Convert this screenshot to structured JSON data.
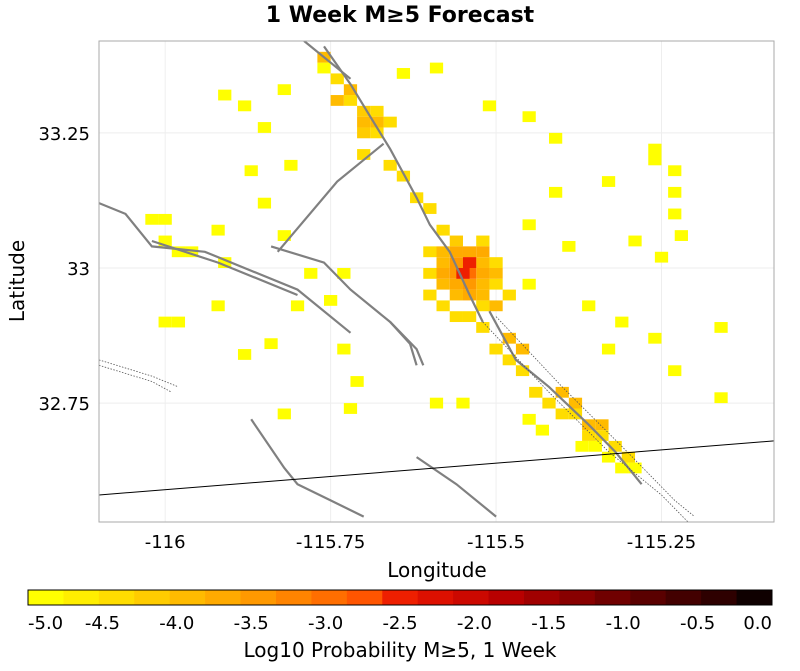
{
  "chart_data": {
    "type": "heatmap",
    "title": "1 Week M≥5 Forecast",
    "xlabel": "Longitude",
    "ylabel": "Latitude",
    "xlim": [
      -116.1,
      -115.08
    ],
    "ylim": [
      32.53,
      33.42
    ],
    "x_ticks": [
      {
        "value": -116,
        "label": "-116"
      },
      {
        "value": -115.75,
        "label": "-115.75"
      },
      {
        "value": -115.5,
        "label": "-115.5"
      },
      {
        "value": -115.25,
        "label": "-115.25"
      }
    ],
    "y_ticks": [
      {
        "value": 33.25,
        "label": "33.25"
      },
      {
        "value": 33,
        "label": "33"
      },
      {
        "value": 32.75,
        "label": "32.75"
      }
    ],
    "grid": true,
    "cell_size_deg": 0.02,
    "colorbar": {
      "label": "Log10 Probability M≥5, 1 Week",
      "range": [
        -5.0,
        0.0
      ],
      "ticks": [
        "-5.0",
        "-4.5",
        "-4.0",
        "-3.5",
        "-3.0",
        "-2.5",
        "-2.0",
        "-1.5",
        "-1.0",
        "-0.5",
        "0.0"
      ],
      "colors": [
        "#ffff00",
        "#ffee00",
        "#ffdd00",
        "#ffcc00",
        "#ffbb00",
        "#ffaa00",
        "#ff9900",
        "#ff8400",
        "#ff6e00",
        "#ff5500",
        "#ee1f00",
        "#dd1000",
        "#cc0800",
        "#b80000",
        "#a00000",
        "#880000",
        "#700000",
        "#5a0000",
        "#430000",
        "#2e0000",
        "#0f0000"
      ]
    },
    "cells": [
      {
        "lon": -115.76,
        "lat": 33.37,
        "v": -4.9
      },
      {
        "lon": -115.82,
        "lat": 33.33,
        "v": -4.9
      },
      {
        "lon": -115.64,
        "lat": 33.36,
        "v": -4.9
      },
      {
        "lon": -115.59,
        "lat": 33.37,
        "v": -4.9
      },
      {
        "lon": -115.51,
        "lat": 33.3,
        "v": -4.9
      },
      {
        "lon": -115.45,
        "lat": 33.28,
        "v": -4.9
      },
      {
        "lon": -115.41,
        "lat": 33.24,
        "v": -4.9
      },
      {
        "lon": -115.26,
        "lat": 33.22,
        "v": -4.9
      },
      {
        "lon": -115.26,
        "lat": 33.2,
        "v": -4.9
      },
      {
        "lon": -115.23,
        "lat": 33.18,
        "v": -4.9
      },
      {
        "lon": -115.23,
        "lat": 33.14,
        "v": -4.9
      },
      {
        "lon": -115.23,
        "lat": 33.1,
        "v": -4.9
      },
      {
        "lon": -115.22,
        "lat": 33.06,
        "v": -4.9
      },
      {
        "lon": -115.16,
        "lat": 32.89,
        "v": -4.9
      },
      {
        "lon": -115.23,
        "lat": 32.81,
        "v": -4.9
      },
      {
        "lon": -115.16,
        "lat": 32.76,
        "v": -4.9
      },
      {
        "lon": -115.33,
        "lat": 33.16,
        "v": -4.9
      },
      {
        "lon": -115.41,
        "lat": 33.14,
        "v": -4.9
      },
      {
        "lon": -115.45,
        "lat": 33.08,
        "v": -4.9
      },
      {
        "lon": -115.39,
        "lat": 33.04,
        "v": -4.9
      },
      {
        "lon": -115.29,
        "lat": 33.05,
        "v": -4.9
      },
      {
        "lon": -115.25,
        "lat": 33.02,
        "v": -4.9
      },
      {
        "lon": -115.26,
        "lat": 32.87,
        "v": -4.9
      },
      {
        "lon": -115.33,
        "lat": 32.85,
        "v": -4.9
      },
      {
        "lon": -115.36,
        "lat": 32.93,
        "v": -4.9
      },
      {
        "lon": -115.31,
        "lat": 32.9,
        "v": -4.9
      },
      {
        "lon": -115.45,
        "lat": 32.97,
        "v": -4.9
      },
      {
        "lon": -116.02,
        "lat": 33.09,
        "v": -4.9
      },
      {
        "lon": -116.0,
        "lat": 33.09,
        "v": -4.9
      },
      {
        "lon": -116.0,
        "lat": 33.05,
        "v": -4.9
      },
      {
        "lon": -115.98,
        "lat": 33.03,
        "v": -4.9
      },
      {
        "lon": -115.96,
        "lat": 33.03,
        "v": -4.9
      },
      {
        "lon": -115.92,
        "lat": 33.07,
        "v": -4.9
      },
      {
        "lon": -115.91,
        "lat": 33.01,
        "v": -4.9
      },
      {
        "lon": -115.92,
        "lat": 32.93,
        "v": -4.9
      },
      {
        "lon": -115.98,
        "lat": 32.9,
        "v": -4.9
      },
      {
        "lon": -116.0,
        "lat": 32.9,
        "v": -4.9
      },
      {
        "lon": -115.88,
        "lat": 32.84,
        "v": -4.9
      },
      {
        "lon": -115.84,
        "lat": 32.86,
        "v": -4.9
      },
      {
        "lon": -115.8,
        "lat": 32.93,
        "v": -4.9
      },
      {
        "lon": -115.78,
        "lat": 32.99,
        "v": -4.9
      },
      {
        "lon": -115.73,
        "lat": 32.99,
        "v": -4.9
      },
      {
        "lon": -115.75,
        "lat": 32.94,
        "v": -4.9
      },
      {
        "lon": -115.73,
        "lat": 32.85,
        "v": -4.9
      },
      {
        "lon": -115.71,
        "lat": 32.79,
        "v": -4.9
      },
      {
        "lon": -115.82,
        "lat": 32.73,
        "v": -4.9
      },
      {
        "lon": -115.72,
        "lat": 32.74,
        "v": -4.9
      },
      {
        "lon": -115.85,
        "lat": 33.12,
        "v": -4.9
      },
      {
        "lon": -115.87,
        "lat": 33.18,
        "v": -4.9
      },
      {
        "lon": -115.81,
        "lat": 33.19,
        "v": -4.9
      },
      {
        "lon": -115.85,
        "lat": 33.26,
        "v": -4.9
      },
      {
        "lon": -115.88,
        "lat": 33.3,
        "v": -4.9
      },
      {
        "lon": -115.91,
        "lat": 33.32,
        "v": -4.9
      },
      {
        "lon": -115.82,
        "lat": 33.06,
        "v": -4.9
      },
      {
        "lon": -115.55,
        "lat": 32.75,
        "v": -4.9
      },
      {
        "lon": -115.59,
        "lat": 32.75,
        "v": -4.9
      },
      {
        "lon": -115.45,
        "lat": 32.72,
        "v": -4.9
      },
      {
        "lon": -115.43,
        "lat": 32.7,
        "v": -4.9
      },
      {
        "lon": -115.37,
        "lat": 32.67,
        "v": -4.9
      },
      {
        "lon": -115.35,
        "lat": 32.67,
        "v": -4.9
      },
      {
        "lon": -115.33,
        "lat": 32.65,
        "v": -4.9
      },
      {
        "lon": -115.31,
        "lat": 32.63,
        "v": -4.9
      },
      {
        "lon": -115.29,
        "lat": 32.63,
        "v": -4.9
      },
      {
        "lon": -115.74,
        "lat": 33.35,
        "v": -4.3
      },
      {
        "lon": -115.72,
        "lat": 33.31,
        "v": -4.4
      },
      {
        "lon": -115.7,
        "lat": 33.29,
        "v": -4.2
      },
      {
        "lon": -115.68,
        "lat": 33.29,
        "v": -4.4
      },
      {
        "lon": -115.7,
        "lat": 33.25,
        "v": -4.1
      },
      {
        "lon": -115.68,
        "lat": 33.25,
        "v": -4.4
      },
      {
        "lon": -115.66,
        "lat": 33.27,
        "v": -4.4
      },
      {
        "lon": -115.7,
        "lat": 33.21,
        "v": -4.4
      },
      {
        "lon": -115.66,
        "lat": 33.19,
        "v": -4.4
      },
      {
        "lon": -115.64,
        "lat": 33.17,
        "v": -4.4
      },
      {
        "lon": -115.62,
        "lat": 33.13,
        "v": -4.4
      },
      {
        "lon": -115.6,
        "lat": 33.11,
        "v": -4.4
      },
      {
        "lon": -115.58,
        "lat": 33.07,
        "v": -4.3
      },
      {
        "lon": -115.56,
        "lat": 33.05,
        "v": -4.1
      },
      {
        "lon": -115.52,
        "lat": 33.05,
        "v": -4.4
      },
      {
        "lon": -115.5,
        "lat": 33.01,
        "v": -4.4
      },
      {
        "lon": -115.5,
        "lat": 32.97,
        "v": -4.3
      },
      {
        "lon": -115.48,
        "lat": 32.95,
        "v": -4.4
      },
      {
        "lon": -115.52,
        "lat": 32.93,
        "v": -4.3
      },
      {
        "lon": -115.54,
        "lat": 32.91,
        "v": -4.3
      },
      {
        "lon": -115.56,
        "lat": 32.91,
        "v": -4.4
      },
      {
        "lon": -115.58,
        "lat": 32.93,
        "v": -4.3
      },
      {
        "lon": -115.6,
        "lat": 32.95,
        "v": -4.4
      },
      {
        "lon": -115.6,
        "lat": 32.99,
        "v": -4.4
      },
      {
        "lon": -115.6,
        "lat": 33.03,
        "v": -4.4
      },
      {
        "lon": -115.52,
        "lat": 32.89,
        "v": -4.4
      },
      {
        "lon": -115.5,
        "lat": 32.85,
        "v": -4.4
      },
      {
        "lon": -115.48,
        "lat": 32.83,
        "v": -4.4
      },
      {
        "lon": -115.46,
        "lat": 32.81,
        "v": -4.4
      },
      {
        "lon": -115.44,
        "lat": 32.77,
        "v": -4.4
      },
      {
        "lon": -115.42,
        "lat": 32.75,
        "v": -4.4
      },
      {
        "lon": -115.4,
        "lat": 32.73,
        "v": -4.3
      },
      {
        "lon": -115.38,
        "lat": 32.73,
        "v": -4.4
      },
      {
        "lon": -115.36,
        "lat": 32.69,
        "v": -4.3
      },
      {
        "lon": -115.34,
        "lat": 32.69,
        "v": -4.4
      },
      {
        "lon": -115.32,
        "lat": 32.67,
        "v": -4.4
      },
      {
        "lon": -115.3,
        "lat": 32.65,
        "v": -4.4
      },
      {
        "lon": -115.76,
        "lat": 33.39,
        "v": -3.9
      },
      {
        "lon": -115.72,
        "lat": 33.33,
        "v": -4.0
      },
      {
        "lon": -115.74,
        "lat": 33.31,
        "v": -4.0
      },
      {
        "lon": -115.7,
        "lat": 33.27,
        "v": -3.9
      },
      {
        "lon": -115.68,
        "lat": 33.27,
        "v": -4.0
      },
      {
        "lon": -115.58,
        "lat": 33.01,
        "v": -3.9
      },
      {
        "lon": -115.58,
        "lat": 33.03,
        "v": -4.0
      },
      {
        "lon": -115.56,
        "lat": 32.95,
        "v": -4.0
      },
      {
        "lon": -115.58,
        "lat": 32.97,
        "v": -3.9
      },
      {
        "lon": -115.52,
        "lat": 32.97,
        "v": -4.0
      },
      {
        "lon": -115.52,
        "lat": 33.01,
        "v": -4.0
      },
      {
        "lon": -115.5,
        "lat": 32.99,
        "v": -4.0
      },
      {
        "lon": -115.48,
        "lat": 32.87,
        "v": -3.9
      },
      {
        "lon": -115.46,
        "lat": 32.85,
        "v": -4.0
      },
      {
        "lon": -115.4,
        "lat": 32.77,
        "v": -4.0
      },
      {
        "lon": -115.38,
        "lat": 32.75,
        "v": -3.9
      },
      {
        "lon": -115.36,
        "lat": 32.71,
        "v": -4.0
      },
      {
        "lon": -115.34,
        "lat": 32.71,
        "v": -4.0
      },
      {
        "lon": -115.56,
        "lat": 33.03,
        "v": -3.6
      },
      {
        "lon": -115.56,
        "lat": 32.97,
        "v": -3.6
      },
      {
        "lon": -115.54,
        "lat": 32.95,
        "v": -3.7
      },
      {
        "lon": -115.52,
        "lat": 32.99,
        "v": -3.6
      },
      {
        "lon": -115.52,
        "lat": 32.95,
        "v": -3.8
      },
      {
        "lon": -115.5,
        "lat": 32.93,
        "v": -3.8
      },
      {
        "lon": -115.58,
        "lat": 32.99,
        "v": -3.6
      },
      {
        "lon": -115.54,
        "lat": 33.03,
        "v": -3.7
      },
      {
        "lon": -115.54,
        "lat": 33.01,
        "v": -3.3
      },
      {
        "lon": -115.52,
        "lat": 33.03,
        "v": -3.6
      },
      {
        "lon": -115.56,
        "lat": 33.01,
        "v": -3.3
      },
      {
        "lon": -115.56,
        "lat": 32.99,
        "v": -3.3
      },
      {
        "lon": -115.54,
        "lat": 32.97,
        "v": -3.3
      },
      {
        "lon": -115.54,
        "lat": 32.99,
        "v": -2.8
      },
      {
        "lon": -115.54,
        "lat": 33.01,
        "v": -2.3
      },
      {
        "lon": -115.55,
        "lat": 32.99,
        "v": -2.4
      }
    ],
    "faults": [
      {
        "style": "solid",
        "points": [
          [
            -115.79,
            33.42
          ],
          [
            -115.72,
            33.35
          ]
        ]
      },
      {
        "style": "solid",
        "points": [
          [
            -115.76,
            33.41
          ],
          [
            -115.72,
            33.34
          ],
          [
            -115.69,
            33.28
          ],
          [
            -115.66,
            33.22
          ],
          [
            -115.62,
            33.13
          ],
          [
            -115.6,
            33.08
          ],
          [
            -115.57,
            33.03
          ],
          [
            -115.54,
            32.95
          ],
          [
            -115.52,
            32.9
          ]
        ]
      },
      {
        "style": "solid",
        "points": [
          [
            -115.67,
            33.23
          ],
          [
            -115.74,
            33.16
          ],
          [
            -115.83,
            33.03
          ]
        ]
      },
      {
        "style": "solid",
        "points": [
          [
            -116.1,
            33.12
          ],
          [
            -116.06,
            33.1
          ],
          [
            -116.02,
            33.04
          ],
          [
            -115.94,
            33.03
          ],
          [
            -115.86,
            32.99
          ],
          [
            -115.8,
            32.96
          ],
          [
            -115.72,
            32.88
          ]
        ]
      },
      {
        "style": "solid",
        "points": [
          [
            -116.02,
            33.05
          ],
          [
            -115.92,
            33.01
          ],
          [
            -115.8,
            32.95
          ]
        ]
      },
      {
        "style": "solid",
        "points": [
          [
            -115.84,
            33.04
          ],
          [
            -115.76,
            33.01
          ],
          [
            -115.72,
            32.96
          ],
          [
            -115.66,
            32.9
          ],
          [
            -115.62,
            32.85
          ],
          [
            -115.61,
            32.82
          ]
        ]
      },
      {
        "style": "solid",
        "points": [
          [
            -115.66,
            32.9
          ],
          [
            -115.63,
            32.86
          ],
          [
            -115.62,
            32.82
          ]
        ]
      },
      {
        "style": "solid",
        "points": [
          [
            -115.51,
            32.92
          ],
          [
            -115.47,
            32.83
          ],
          [
            -115.42,
            32.78
          ],
          [
            -115.36,
            32.71
          ],
          [
            -115.32,
            32.66
          ],
          [
            -115.28,
            32.6
          ]
        ]
      },
      {
        "style": "solid",
        "points": [
          [
            -115.87,
            32.72
          ],
          [
            -115.82,
            32.63
          ],
          [
            -115.8,
            32.6
          ],
          [
            -115.75,
            32.57
          ],
          [
            -115.7,
            32.54
          ]
        ]
      },
      {
        "style": "solid",
        "points": [
          [
            -115.62,
            32.65
          ],
          [
            -115.56,
            32.6
          ],
          [
            -115.5,
            32.54
          ]
        ]
      },
      {
        "style": "dotted",
        "points": [
          [
            -115.52,
            32.9
          ],
          [
            -115.42,
            32.77
          ],
          [
            -115.33,
            32.66
          ],
          [
            -115.25,
            32.58
          ],
          [
            -115.21,
            32.53
          ]
        ]
      },
      {
        "style": "dotted",
        "points": [
          [
            -115.5,
            32.91
          ],
          [
            -115.4,
            32.78
          ],
          [
            -115.31,
            32.67
          ],
          [
            -115.23,
            32.57
          ],
          [
            -115.2,
            32.54
          ]
        ]
      },
      {
        "style": "dotted",
        "points": [
          [
            -116.1,
            32.83
          ],
          [
            -116.02,
            32.8
          ],
          [
            -115.98,
            32.78
          ]
        ]
      },
      {
        "style": "dotted",
        "points": [
          [
            -116.1,
            32.82
          ],
          [
            -116.02,
            32.79
          ],
          [
            -115.99,
            32.77
          ]
        ]
      },
      {
        "style": "solid",
        "points": [
          [
            -116.1,
            32.58
          ],
          [
            -115.08,
            32.68
          ]
        ]
      }
    ]
  }
}
